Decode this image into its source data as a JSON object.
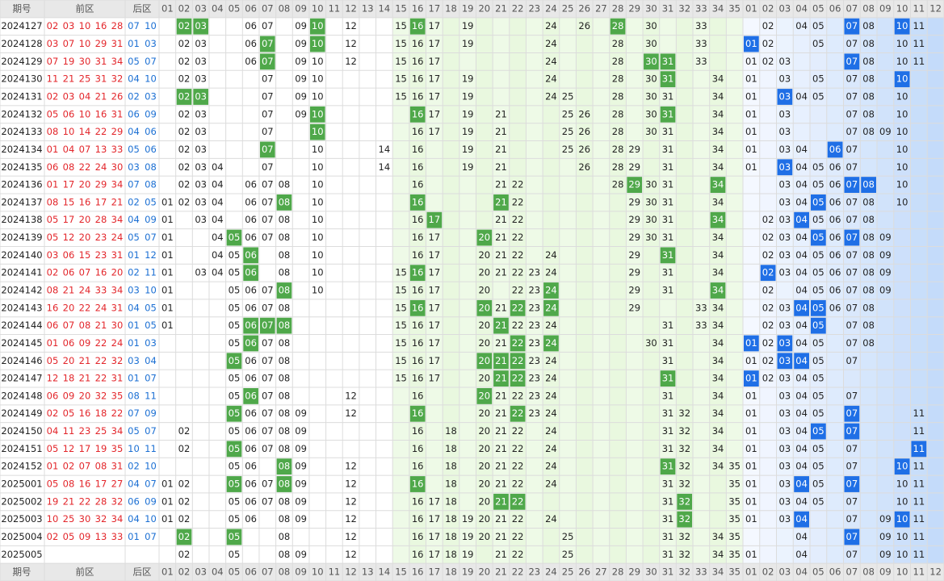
{
  "header": {
    "issue": "期号",
    "front": "前区",
    "back": "后区",
    "front_cols": [
      "01",
      "02",
      "03",
      "04",
      "05",
      "06",
      "07",
      "08",
      "09",
      "10",
      "11",
      "12",
      "13",
      "14",
      "15",
      "16",
      "17",
      "18",
      "19",
      "20",
      "21",
      "22",
      "23",
      "24",
      "25",
      "26",
      "27",
      "28",
      "29",
      "30",
      "31",
      "32",
      "33",
      "34",
      "35"
    ],
    "back_cols": [
      "01",
      "02",
      "03",
      "04",
      "05",
      "06",
      "07",
      "08",
      "09",
      "10",
      "11",
      "12"
    ]
  },
  "rows": [
    {
      "issue": "2024127",
      "front": [
        "02",
        "03",
        "10",
        "16",
        "28"
      ],
      "back": [
        "07",
        "10"
      ],
      "front_grid": [
        "06",
        "07",
        "09",
        "12",
        "15",
        "17",
        "19",
        "24",
        "26",
        "30",
        "33"
      ],
      "front_hit": [
        "02",
        "03",
        "10",
        "16",
        "28"
      ],
      "back_grid": [
        "02",
        "04",
        "05",
        "08",
        "11"
      ],
      "back_hit": [
        "07",
        "10"
      ]
    },
    {
      "issue": "2024128",
      "front": [
        "03",
        "07",
        "10",
        "29",
        "31"
      ],
      "back": [
        "01",
        "03"
      ],
      "front_grid": [
        "02",
        "03",
        "06",
        "09",
        "12",
        "15",
        "16",
        "17",
        "19",
        "24",
        "28",
        "30",
        "33"
      ],
      "front_hit": [
        "07",
        "10"
      ],
      "back_grid": [
        "02",
        "05",
        "07",
        "08",
        "10",
        "11"
      ],
      "back_hit": [
        "01"
      ]
    },
    {
      "issue": "2024129",
      "front": [
        "07",
        "19",
        "30",
        "31",
        "34"
      ],
      "back": [
        "05",
        "07"
      ],
      "front_grid": [
        "02",
        "03",
        "06",
        "09",
        "10",
        "12",
        "15",
        "16",
        "17",
        "24",
        "28",
        "33"
      ],
      "front_hit": [
        "07",
        "30",
        "31"
      ],
      "back_grid": [
        "01",
        "02",
        "03",
        "08",
        "10",
        "11"
      ],
      "back_hit": [
        "07"
      ]
    },
    {
      "issue": "2024130",
      "front": [
        "11",
        "21",
        "25",
        "31",
        "32"
      ],
      "back": [
        "04",
        "10"
      ],
      "front_grid": [
        "02",
        "03",
        "07",
        "09",
        "10",
        "15",
        "16",
        "17",
        "19",
        "24",
        "28",
        "30",
        "34"
      ],
      "front_hit": [
        "31"
      ],
      "back_grid": [
        "01",
        "03",
        "05",
        "07",
        "08"
      ],
      "back_hit": [
        "10"
      ]
    },
    {
      "issue": "2024131",
      "front": [
        "02",
        "03",
        "04",
        "21",
        "26"
      ],
      "back": [
        "02",
        "03"
      ],
      "front_grid": [
        "07",
        "09",
        "10",
        "15",
        "16",
        "17",
        "19",
        "24",
        "25",
        "28",
        "30",
        "31",
        "34"
      ],
      "front_hit": [
        "02",
        "03"
      ],
      "back_grid": [
        "01",
        "04",
        "05",
        "07",
        "08",
        "10"
      ],
      "back_hit": [
        "03"
      ]
    },
    {
      "issue": "2024132",
      "front": [
        "05",
        "06",
        "10",
        "16",
        "31"
      ],
      "back": [
        "06",
        "09"
      ],
      "front_grid": [
        "02",
        "03",
        "07",
        "09",
        "17",
        "19",
        "21",
        "25",
        "26",
        "28",
        "30",
        "34"
      ],
      "front_hit": [
        "10",
        "16",
        "31"
      ],
      "back_grid": [
        "01",
        "03",
        "07",
        "08",
        "10"
      ],
      "back_hit": []
    },
    {
      "issue": "2024133",
      "front": [
        "08",
        "10",
        "14",
        "22",
        "29"
      ],
      "back": [
        "04",
        "06"
      ],
      "front_grid": [
        "02",
        "03",
        "07",
        "16",
        "17",
        "19",
        "21",
        "25",
        "26",
        "28",
        "30",
        "31",
        "34"
      ],
      "front_hit": [
        "10"
      ],
      "back_grid": [
        "01",
        "03",
        "07",
        "08",
        "09",
        "10"
      ],
      "back_hit": []
    },
    {
      "issue": "2024134",
      "front": [
        "01",
        "04",
        "07",
        "13",
        "33"
      ],
      "back": [
        "05",
        "06"
      ],
      "front_grid": [
        "02",
        "03",
        "10",
        "14",
        "16",
        "19",
        "21",
        "25",
        "26",
        "28",
        "29",
        "31",
        "34"
      ],
      "front_hit": [
        "07"
      ],
      "back_grid": [
        "01",
        "03",
        "04",
        "07",
        "10"
      ],
      "back_hit": [
        "06"
      ]
    },
    {
      "issue": "2024135",
      "front": [
        "06",
        "08",
        "22",
        "24",
        "30"
      ],
      "back": [
        "03",
        "08"
      ],
      "front_grid": [
        "02",
        "03",
        "04",
        "07",
        "10",
        "14",
        "16",
        "19",
        "21",
        "26",
        "28",
        "29",
        "31",
        "34"
      ],
      "front_hit": [],
      "back_grid": [
        "01",
        "04",
        "05",
        "06",
        "07",
        "10"
      ],
      "back_hit": [
        "03"
      ]
    },
    {
      "issue": "2024136",
      "front": [
        "01",
        "17",
        "20",
        "29",
        "34"
      ],
      "back": [
        "07",
        "08"
      ],
      "front_grid": [
        "02",
        "03",
        "04",
        "06",
        "07",
        "08",
        "10",
        "16",
        "21",
        "22",
        "28",
        "30",
        "31"
      ],
      "front_hit": [
        "29",
        "34"
      ],
      "back_grid": [
        "03",
        "04",
        "05",
        "06",
        "10"
      ],
      "back_hit": [
        "07",
        "08"
      ]
    },
    {
      "issue": "2024137",
      "front": [
        "08",
        "15",
        "16",
        "17",
        "21"
      ],
      "back": [
        "02",
        "05"
      ],
      "front_grid": [
        "01",
        "02",
        "03",
        "04",
        "06",
        "07",
        "10",
        "22",
        "29",
        "30",
        "31",
        "34"
      ],
      "front_hit": [
        "08",
        "16",
        "21"
      ],
      "back_grid": [
        "03",
        "04",
        "06",
        "07",
        "08",
        "10"
      ],
      "back_hit": [
        "05"
      ]
    },
    {
      "issue": "2024138",
      "front": [
        "05",
        "17",
        "20",
        "28",
        "34"
      ],
      "back": [
        "04",
        "09"
      ],
      "front_grid": [
        "01",
        "03",
        "04",
        "06",
        "07",
        "08",
        "10",
        "16",
        "21",
        "22",
        "29",
        "30",
        "31"
      ],
      "front_hit": [
        "17",
        "34"
      ],
      "back_grid": [
        "02",
        "03",
        "05",
        "06",
        "07",
        "08"
      ],
      "back_hit": [
        "04"
      ]
    },
    {
      "issue": "2024139",
      "front": [
        "05",
        "12",
        "20",
        "23",
        "24"
      ],
      "back": [
        "05",
        "07"
      ],
      "front_grid": [
        "01",
        "04",
        "06",
        "07",
        "08",
        "10",
        "16",
        "17",
        "21",
        "22",
        "29",
        "30",
        "31",
        "34"
      ],
      "front_hit": [
        "05",
        "20"
      ],
      "back_grid": [
        "02",
        "03",
        "04",
        "06",
        "08",
        "09"
      ],
      "back_hit": [
        "05",
        "07"
      ]
    },
    {
      "issue": "2024140",
      "front": [
        "03",
        "06",
        "15",
        "23",
        "31"
      ],
      "back": [
        "01",
        "12"
      ],
      "front_grid": [
        "01",
        "04",
        "05",
        "08",
        "10",
        "16",
        "17",
        "20",
        "21",
        "22",
        "24",
        "29",
        "34"
      ],
      "front_hit": [
        "06",
        "31"
      ],
      "back_grid": [
        "02",
        "03",
        "04",
        "05",
        "06",
        "07",
        "08",
        "09"
      ],
      "back_hit": []
    },
    {
      "issue": "2024141",
      "front": [
        "02",
        "06",
        "07",
        "16",
        "20"
      ],
      "back": [
        "02",
        "11"
      ],
      "front_grid": [
        "01",
        "03",
        "04",
        "05",
        "08",
        "10",
        "15",
        "17",
        "20",
        "21",
        "22",
        "23",
        "24",
        "29",
        "31",
        "34"
      ],
      "front_hit": [
        "06",
        "16"
      ],
      "back_grid": [
        "03",
        "04",
        "05",
        "06",
        "07",
        "08",
        "09"
      ],
      "back_hit": [
        "02"
      ]
    },
    {
      "issue": "2024142",
      "front": [
        "08",
        "21",
        "24",
        "33",
        "34"
      ],
      "back": [
        "03",
        "10"
      ],
      "front_grid": [
        "01",
        "05",
        "06",
        "07",
        "10",
        "15",
        "16",
        "17",
        "20",
        "22",
        "23",
        "29",
        "31"
      ],
      "front_hit": [
        "08",
        "24",
        "34"
      ],
      "back_grid": [
        "02",
        "04",
        "05",
        "06",
        "07",
        "08",
        "09"
      ],
      "back_hit": []
    },
    {
      "issue": "2024143",
      "front": [
        "16",
        "20",
        "22",
        "24",
        "31"
      ],
      "back": [
        "04",
        "05"
      ],
      "front_grid": [
        "01",
        "05",
        "06",
        "07",
        "08",
        "15",
        "17",
        "21",
        "23",
        "29",
        "33",
        "34"
      ],
      "front_hit": [
        "16",
        "20",
        "22",
        "24"
      ],
      "back_grid": [
        "02",
        "03",
        "06",
        "07",
        "08"
      ],
      "back_hit": [
        "04",
        "05"
      ]
    },
    {
      "issue": "2024144",
      "front": [
        "06",
        "07",
        "08",
        "21",
        "30"
      ],
      "back": [
        "01",
        "05"
      ],
      "front_grid": [
        "01",
        "05",
        "15",
        "16",
        "17",
        "20",
        "22",
        "23",
        "24",
        "31",
        "33",
        "34"
      ],
      "front_hit": [
        "06",
        "07",
        "08",
        "21"
      ],
      "back_grid": [
        "02",
        "03",
        "04",
        "07",
        "08"
      ],
      "back_hit": [
        "05"
      ]
    },
    {
      "issue": "2024145",
      "front": [
        "01",
        "06",
        "09",
        "22",
        "24"
      ],
      "back": [
        "01",
        "03"
      ],
      "front_grid": [
        "05",
        "07",
        "08",
        "15",
        "16",
        "17",
        "20",
        "21",
        "23",
        "30",
        "31",
        "34"
      ],
      "front_hit": [
        "06",
        "22",
        "24"
      ],
      "back_grid": [
        "02",
        "04",
        "05",
        "07",
        "08"
      ],
      "back_hit": [
        "01",
        "03"
      ]
    },
    {
      "issue": "2024146",
      "front": [
        "05",
        "20",
        "21",
        "22",
        "32"
      ],
      "back": [
        "03",
        "04"
      ],
      "front_grid": [
        "06",
        "07",
        "08",
        "15",
        "16",
        "17",
        "23",
        "24",
        "31",
        "34"
      ],
      "front_hit": [
        "05",
        "20",
        "21",
        "22"
      ],
      "back_grid": [
        "01",
        "02",
        "05",
        "07"
      ],
      "back_hit": [
        "03",
        "04"
      ]
    },
    {
      "issue": "2024147",
      "front": [
        "12",
        "18",
        "21",
        "22",
        "31"
      ],
      "back": [
        "01",
        "07"
      ],
      "front_grid": [
        "05",
        "06",
        "07",
        "08",
        "15",
        "16",
        "17",
        "20",
        "23",
        "24",
        "34"
      ],
      "front_hit": [
        "21",
        "22",
        "31"
      ],
      "back_grid": [
        "02",
        "03",
        "04",
        "05"
      ],
      "back_hit": [
        "01"
      ]
    },
    {
      "issue": "2024148",
      "front": [
        "06",
        "09",
        "20",
        "32",
        "35"
      ],
      "back": [
        "08",
        "11"
      ],
      "front_grid": [
        "05",
        "07",
        "08",
        "12",
        "16",
        "21",
        "22",
        "23",
        "24",
        "31",
        "34"
      ],
      "front_hit": [
        "06",
        "20"
      ],
      "back_grid": [
        "01",
        "03",
        "04",
        "05",
        "07"
      ],
      "back_hit": []
    },
    {
      "issue": "2024149",
      "front": [
        "02",
        "05",
        "16",
        "18",
        "22"
      ],
      "back": [
        "07",
        "09"
      ],
      "front_grid": [
        "06",
        "07",
        "08",
        "09",
        "12",
        "20",
        "21",
        "23",
        "24",
        "31",
        "32",
        "34"
      ],
      "front_hit": [
        "05",
        "16",
        "22"
      ],
      "back_grid": [
        "01",
        "03",
        "04",
        "05",
        "11"
      ],
      "back_hit": [
        "07"
      ]
    },
    {
      "issue": "2024150",
      "front": [
        "04",
        "11",
        "23",
        "25",
        "34"
      ],
      "back": [
        "05",
        "07"
      ],
      "front_grid": [
        "02",
        "05",
        "06",
        "07",
        "08",
        "09",
        "16",
        "18",
        "20",
        "21",
        "22",
        "24",
        "31",
        "32",
        "34"
      ],
      "front_hit": [],
      "back_grid": [
        "01",
        "03",
        "04",
        "11"
      ],
      "back_hit": [
        "05",
        "07"
      ]
    },
    {
      "issue": "2024151",
      "front": [
        "05",
        "12",
        "17",
        "19",
        "35"
      ],
      "back": [
        "10",
        "11"
      ],
      "front_grid": [
        "02",
        "06",
        "07",
        "08",
        "09",
        "16",
        "18",
        "20",
        "21",
        "22",
        "24",
        "31",
        "32",
        "34"
      ],
      "front_hit": [
        "05"
      ],
      "back_grid": [
        "01",
        "03",
        "04",
        "05",
        "07"
      ],
      "back_hit": [
        "11"
      ]
    },
    {
      "issue": "2024152",
      "front": [
        "01",
        "02",
        "07",
        "08",
        "31"
      ],
      "back": [
        "02",
        "10"
      ],
      "front_grid": [
        "05",
        "06",
        "09",
        "12",
        "16",
        "18",
        "20",
        "21",
        "22",
        "24",
        "32",
        "34",
        "35"
      ],
      "front_hit": [
        "08",
        "31"
      ],
      "back_grid": [
        "01",
        "03",
        "04",
        "05",
        "07",
        "11"
      ],
      "back_hit": [
        "10"
      ]
    },
    {
      "issue": "2025001",
      "front": [
        "05",
        "08",
        "16",
        "17",
        "27"
      ],
      "back": [
        "04",
        "07"
      ],
      "front_grid": [
        "01",
        "02",
        "06",
        "07",
        "09",
        "12",
        "18",
        "20",
        "21",
        "22",
        "24",
        "31",
        "32",
        "35"
      ],
      "front_hit": [
        "05",
        "08",
        "16"
      ],
      "back_grid": [
        "01",
        "03",
        "05",
        "10",
        "11"
      ],
      "back_hit": [
        "04",
        "07"
      ]
    },
    {
      "issue": "2025002",
      "front": [
        "19",
        "21",
        "22",
        "28",
        "32"
      ],
      "back": [
        "06",
        "09"
      ],
      "front_grid": [
        "01",
        "02",
        "05",
        "06",
        "07",
        "08",
        "09",
        "12",
        "16",
        "17",
        "18",
        "20",
        "31",
        "35"
      ],
      "front_hit": [
        "21",
        "22",
        "32"
      ],
      "back_grid": [
        "01",
        "03",
        "04",
        "05",
        "07",
        "10",
        "11"
      ],
      "back_hit": []
    },
    {
      "issue": "2025003",
      "front": [
        "10",
        "25",
        "30",
        "32",
        "34"
      ],
      "back": [
        "04",
        "10"
      ],
      "front_grid": [
        "01",
        "02",
        "05",
        "06",
        "08",
        "09",
        "12",
        "16",
        "17",
        "18",
        "19",
        "20",
        "21",
        "22",
        "24",
        "31",
        "35"
      ],
      "front_hit": [
        "32"
      ],
      "back_grid": [
        "01",
        "03",
        "07",
        "09",
        "11"
      ],
      "back_hit": [
        "04",
        "10"
      ]
    },
    {
      "issue": "2025004",
      "front": [
        "02",
        "05",
        "09",
        "13",
        "33"
      ],
      "back": [
        "01",
        "07"
      ],
      "front_grid": [
        "08",
        "12",
        "16",
        "17",
        "18",
        "19",
        "20",
        "21",
        "22",
        "25",
        "31",
        "32",
        "34",
        "35"
      ],
      "front_hit": [
        "02",
        "05"
      ],
      "back_grid": [
        "04",
        "09",
        "10",
        "11"
      ],
      "back_hit": [
        "07"
      ]
    },
    {
      "issue": "2025005",
      "front": [],
      "back": [],
      "front_grid": [
        "02",
        "05",
        "08",
        "09",
        "12",
        "16",
        "17",
        "18",
        "19",
        "21",
        "22",
        "25",
        "31",
        "32",
        "34",
        "35"
      ],
      "front_hit": [],
      "back_grid": [
        "01",
        "04",
        "07",
        "09",
        "10",
        "11"
      ],
      "back_hit": []
    }
  ]
}
